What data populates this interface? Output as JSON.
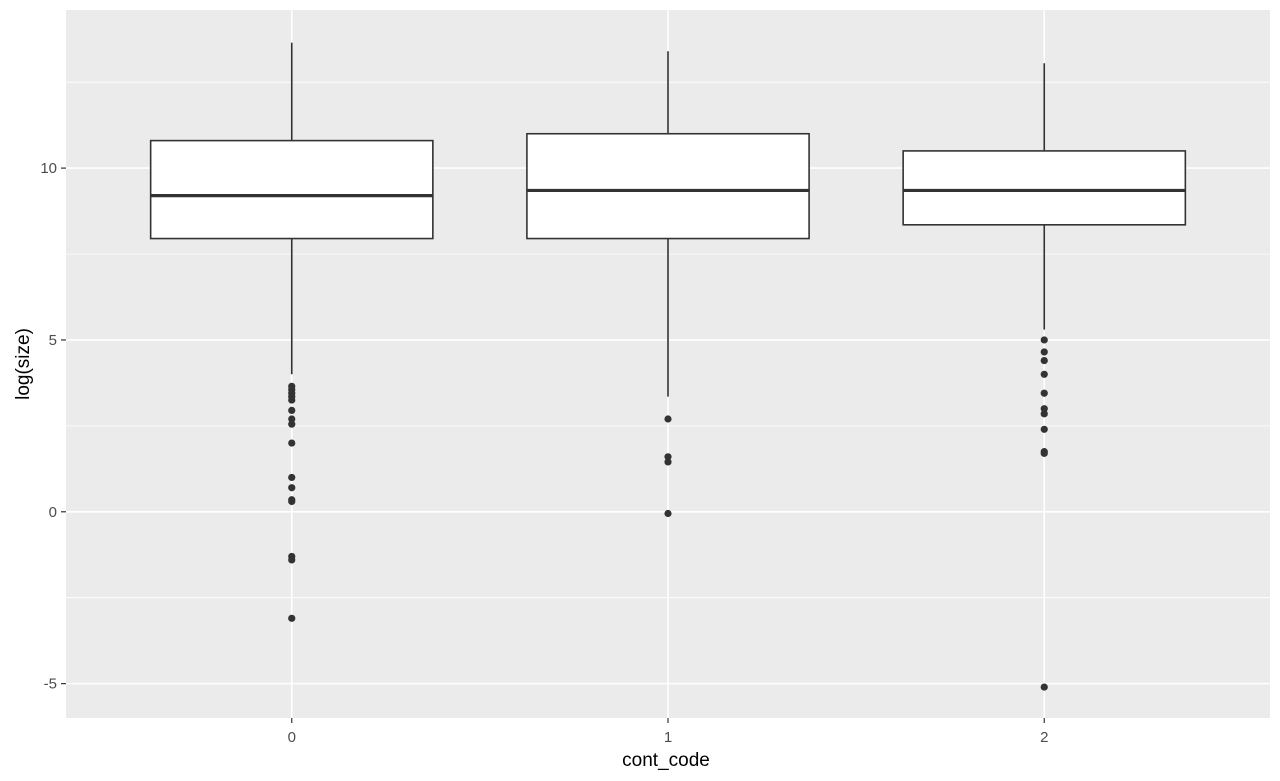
{
  "chart_data": {
    "type": "boxplot",
    "title": "",
    "xlabel": "cont_code",
    "ylabel": "log(size)",
    "categories": [
      "0",
      "1",
      "2"
    ],
    "ylim": [
      -6.0,
      14.6
    ],
    "yticks": [
      -5,
      0,
      5,
      10
    ],
    "ytick_labels": [
      "-5",
      "0",
      "5",
      "10"
    ],
    "grid": true,
    "legend": "none",
    "colors": {
      "panel": "#ebebeb",
      "grid": "#ffffff",
      "box_fill": "#ffffff",
      "box_line": "#333333",
      "outlier": "#333333"
    },
    "boxes": [
      {
        "category": "0",
        "whisker_low": 4.0,
        "q1": 7.95,
        "median": 9.2,
        "q3": 10.8,
        "whisker_high": 13.65,
        "outliers": [
          3.65,
          3.55,
          3.45,
          3.35,
          3.25,
          2.95,
          2.7,
          2.55,
          2.0,
          1.0,
          0.7,
          0.35,
          0.3,
          -1.3,
          -1.4,
          -3.1
        ]
      },
      {
        "category": "1",
        "whisker_low": 3.35,
        "q1": 7.95,
        "median": 9.35,
        "q3": 11.0,
        "whisker_high": 13.4,
        "outliers": [
          2.7,
          1.6,
          1.45,
          -0.05
        ]
      },
      {
        "category": "2",
        "whisker_low": 5.3,
        "q1": 8.35,
        "median": 9.35,
        "q3": 10.5,
        "whisker_high": 13.05,
        "outliers": [
          5.0,
          4.65,
          4.4,
          4.0,
          3.45,
          3.0,
          2.85,
          2.4,
          1.75,
          1.7,
          -5.1
        ]
      }
    ]
  }
}
